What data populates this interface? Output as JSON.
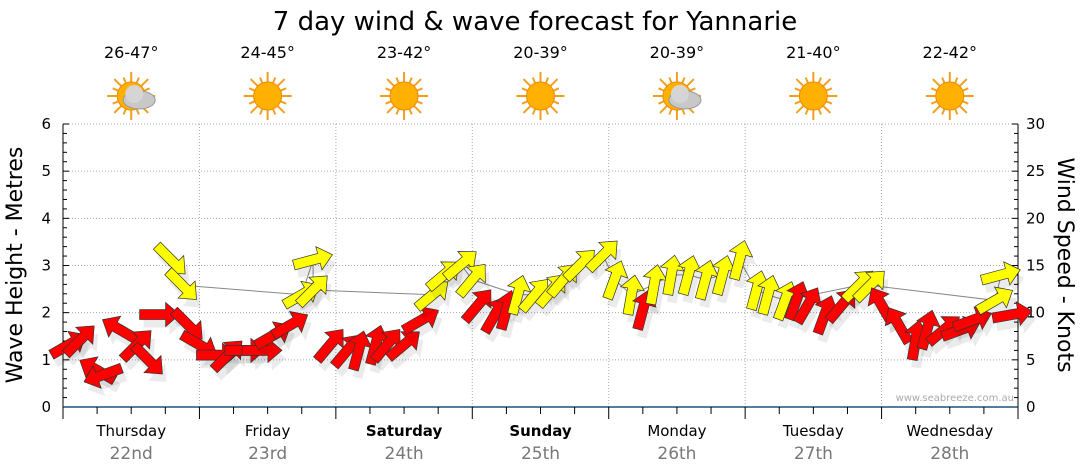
{
  "chart_data": {
    "type": "scatter",
    "title": "7 day wind & wave forecast for Yannarie",
    "ylabel_left": "Wave Height - Metres",
    "ylabel_right": "Wind Speed - Knots",
    "ylim_left": [
      0,
      6
    ],
    "ylim_right": [
      0,
      30
    ],
    "yticks_left": [
      "0",
      "1",
      "2",
      "3",
      "4",
      "5",
      "6"
    ],
    "yticks_right": [
      "0",
      "5",
      "10",
      "15",
      "20",
      "25",
      "30"
    ],
    "xlim_hours": [
      0,
      168
    ],
    "grid": true,
    "watermark": "www.seabreeze.com.au",
    "days": [
      {
        "name": "Thursday",
        "date": "22nd",
        "bold": false,
        "temp": "26-47°",
        "icon": "partly-cloudy-icon"
      },
      {
        "name": "Friday",
        "date": "23rd",
        "bold": false,
        "temp": "24-45°",
        "icon": "sunny-icon"
      },
      {
        "name": "Saturday",
        "date": "24th",
        "bold": true,
        "temp": "23-42°",
        "icon": "sunny-icon"
      },
      {
        "name": "Sunday",
        "date": "25th",
        "bold": true,
        "temp": "20-39°",
        "icon": "sunny-icon"
      },
      {
        "name": "Monday",
        "date": "26th",
        "bold": false,
        "temp": "20-39°",
        "icon": "partly-cloudy-icon"
      },
      {
        "name": "Tuesday",
        "date": "27th",
        "bold": false,
        "temp": "21-40°",
        "icon": "sunny-icon"
      },
      {
        "name": "Wednesday",
        "date": "28th",
        "bold": false,
        "temp": "22-42°",
        "icon": "sunny-icon"
      }
    ],
    "colors": {
      "red": "#ff0000",
      "yellow": "#ffff00"
    },
    "arrows_knots": [
      {
        "h": 1,
        "k": 6.6,
        "dir": 60,
        "c": "red"
      },
      {
        "h": 3,
        "k": 7.1,
        "dir": 45,
        "c": "red"
      },
      {
        "h": 6,
        "k": 3.9,
        "dir": 300,
        "c": "red"
      },
      {
        "h": 7,
        "k": 3.4,
        "dir": 250,
        "c": "red"
      },
      {
        "h": 10,
        "k": 8.2,
        "dir": 300,
        "c": "red"
      },
      {
        "h": 13,
        "k": 6.6,
        "dir": 45,
        "c": "red"
      },
      {
        "h": 15,
        "k": 5.0,
        "dir": 135,
        "c": "red"
      },
      {
        "h": 17,
        "k": 9.8,
        "dir": 90,
        "c": "red"
      },
      {
        "h": 19,
        "k": 15.6,
        "dir": 135,
        "c": "yellow"
      },
      {
        "h": 21,
        "k": 12.9,
        "dir": 135,
        "c": "yellow"
      },
      {
        "h": 22,
        "k": 8.7,
        "dir": 135,
        "c": "red"
      },
      {
        "h": 24,
        "k": 6.6,
        "dir": 120,
        "c": "red"
      },
      {
        "h": 27,
        "k": 5.5,
        "dir": 90,
        "c": "red"
      },
      {
        "h": 29,
        "k": 5.5,
        "dir": 45,
        "c": "red"
      },
      {
        "h": 32,
        "k": 6.0,
        "dir": 90,
        "c": "red"
      },
      {
        "h": 35,
        "k": 6.0,
        "dir": 90,
        "c": "red"
      },
      {
        "h": 37,
        "k": 7.6,
        "dir": 60,
        "c": "red"
      },
      {
        "h": 40,
        "k": 8.7,
        "dir": 60,
        "c": "red"
      },
      {
        "h": 42,
        "k": 11.9,
        "dir": 60,
        "c": "yellow"
      },
      {
        "h": 44,
        "k": 15.6,
        "dir": 75,
        "c": "yellow"
      },
      {
        "h": 44,
        "k": 12.4,
        "dir": 45,
        "c": "yellow"
      },
      {
        "h": 47,
        "k": 6.6,
        "dir": 40,
        "c": "red"
      },
      {
        "h": 50,
        "k": 6.0,
        "dir": 40,
        "c": "red"
      },
      {
        "h": 52,
        "k": 6.0,
        "dir": 15,
        "c": "red"
      },
      {
        "h": 55,
        "k": 6.6,
        "dir": 15,
        "c": "red"
      },
      {
        "h": 57,
        "k": 6.6,
        "dir": 40,
        "c": "red"
      },
      {
        "h": 60,
        "k": 6.6,
        "dir": 50,
        "c": "red"
      },
      {
        "h": 63,
        "k": 9.2,
        "dir": 60,
        "c": "red"
      },
      {
        "h": 65,
        "k": 11.9,
        "dir": 50,
        "c": "yellow"
      },
      {
        "h": 67,
        "k": 14.0,
        "dir": 50,
        "c": "yellow"
      },
      {
        "h": 70,
        "k": 15.1,
        "dir": 50,
        "c": "yellow"
      },
      {
        "h": 72,
        "k": 13.5,
        "dir": 40,
        "c": "yellow"
      },
      {
        "h": 73,
        "k": 10.8,
        "dir": 40,
        "c": "red"
      },
      {
        "h": 76,
        "k": 9.8,
        "dir": 30,
        "c": "red"
      },
      {
        "h": 78,
        "k": 10.3,
        "dir": 15,
        "c": "red"
      },
      {
        "h": 80,
        "k": 11.9,
        "dir": 15,
        "c": "yellow"
      },
      {
        "h": 83,
        "k": 11.9,
        "dir": 40,
        "c": "yellow"
      },
      {
        "h": 86,
        "k": 12.4,
        "dir": 40,
        "c": "yellow"
      },
      {
        "h": 88,
        "k": 13.5,
        "dir": 40,
        "c": "yellow"
      },
      {
        "h": 91,
        "k": 15.1,
        "dir": 45,
        "c": "yellow"
      },
      {
        "h": 95,
        "k": 16.1,
        "dir": 45,
        "c": "yellow"
      },
      {
        "h": 97,
        "k": 13.5,
        "dir": 20,
        "c": "yellow"
      },
      {
        "h": 100,
        "k": 11.9,
        "dir": 10,
        "c": "yellow"
      },
      {
        "h": 102,
        "k": 10.3,
        "dir": 15,
        "c": "red"
      },
      {
        "h": 104,
        "k": 13.0,
        "dir": 10,
        "c": "yellow"
      },
      {
        "h": 107,
        "k": 14.0,
        "dir": 10,
        "c": "yellow"
      },
      {
        "h": 110,
        "k": 14.0,
        "dir": 15,
        "c": "yellow"
      },
      {
        "h": 113,
        "k": 13.5,
        "dir": 15,
        "c": "yellow"
      },
      {
        "h": 116,
        "k": 14.0,
        "dir": 15,
        "c": "yellow"
      },
      {
        "h": 119,
        "k": 15.6,
        "dir": 15,
        "c": "yellow"
      },
      {
        "h": 122,
        "k": 12.4,
        "dir": 15,
        "c": "yellow"
      },
      {
        "h": 124,
        "k": 11.9,
        "dir": 15,
        "c": "yellow"
      },
      {
        "h": 127,
        "k": 11.3,
        "dir": 20,
        "c": "yellow"
      },
      {
        "h": 129,
        "k": 11.3,
        "dir": 20,
        "c": "red"
      },
      {
        "h": 131,
        "k": 10.8,
        "dir": 30,
        "c": "red"
      },
      {
        "h": 134,
        "k": 9.8,
        "dir": 20,
        "c": "red"
      },
      {
        "h": 137,
        "k": 10.8,
        "dir": 40,
        "c": "red"
      },
      {
        "h": 140,
        "k": 12.9,
        "dir": 45,
        "c": "yellow"
      },
      {
        "h": 142,
        "k": 12.9,
        "dir": 45,
        "c": "yellow"
      },
      {
        "h": 144,
        "k": 10.8,
        "dir": 330,
        "c": "red"
      },
      {
        "h": 147,
        "k": 8.7,
        "dir": 330,
        "c": "red"
      },
      {
        "h": 150,
        "k": 7.1,
        "dir": 10,
        "c": "red"
      },
      {
        "h": 152,
        "k": 8.2,
        "dir": 15,
        "c": "red"
      },
      {
        "h": 155,
        "k": 8.2,
        "dir": 50,
        "c": "red"
      },
      {
        "h": 158,
        "k": 8.2,
        "dir": 70,
        "c": "red"
      },
      {
        "h": 160,
        "k": 9.2,
        "dir": 70,
        "c": "red"
      },
      {
        "h": 164,
        "k": 11.3,
        "dir": 60,
        "c": "yellow"
      },
      {
        "h": 165,
        "k": 14.0,
        "dir": 75,
        "c": "yellow"
      },
      {
        "h": 167,
        "k": 9.8,
        "dir": 80,
        "c": "red"
      }
    ]
  }
}
